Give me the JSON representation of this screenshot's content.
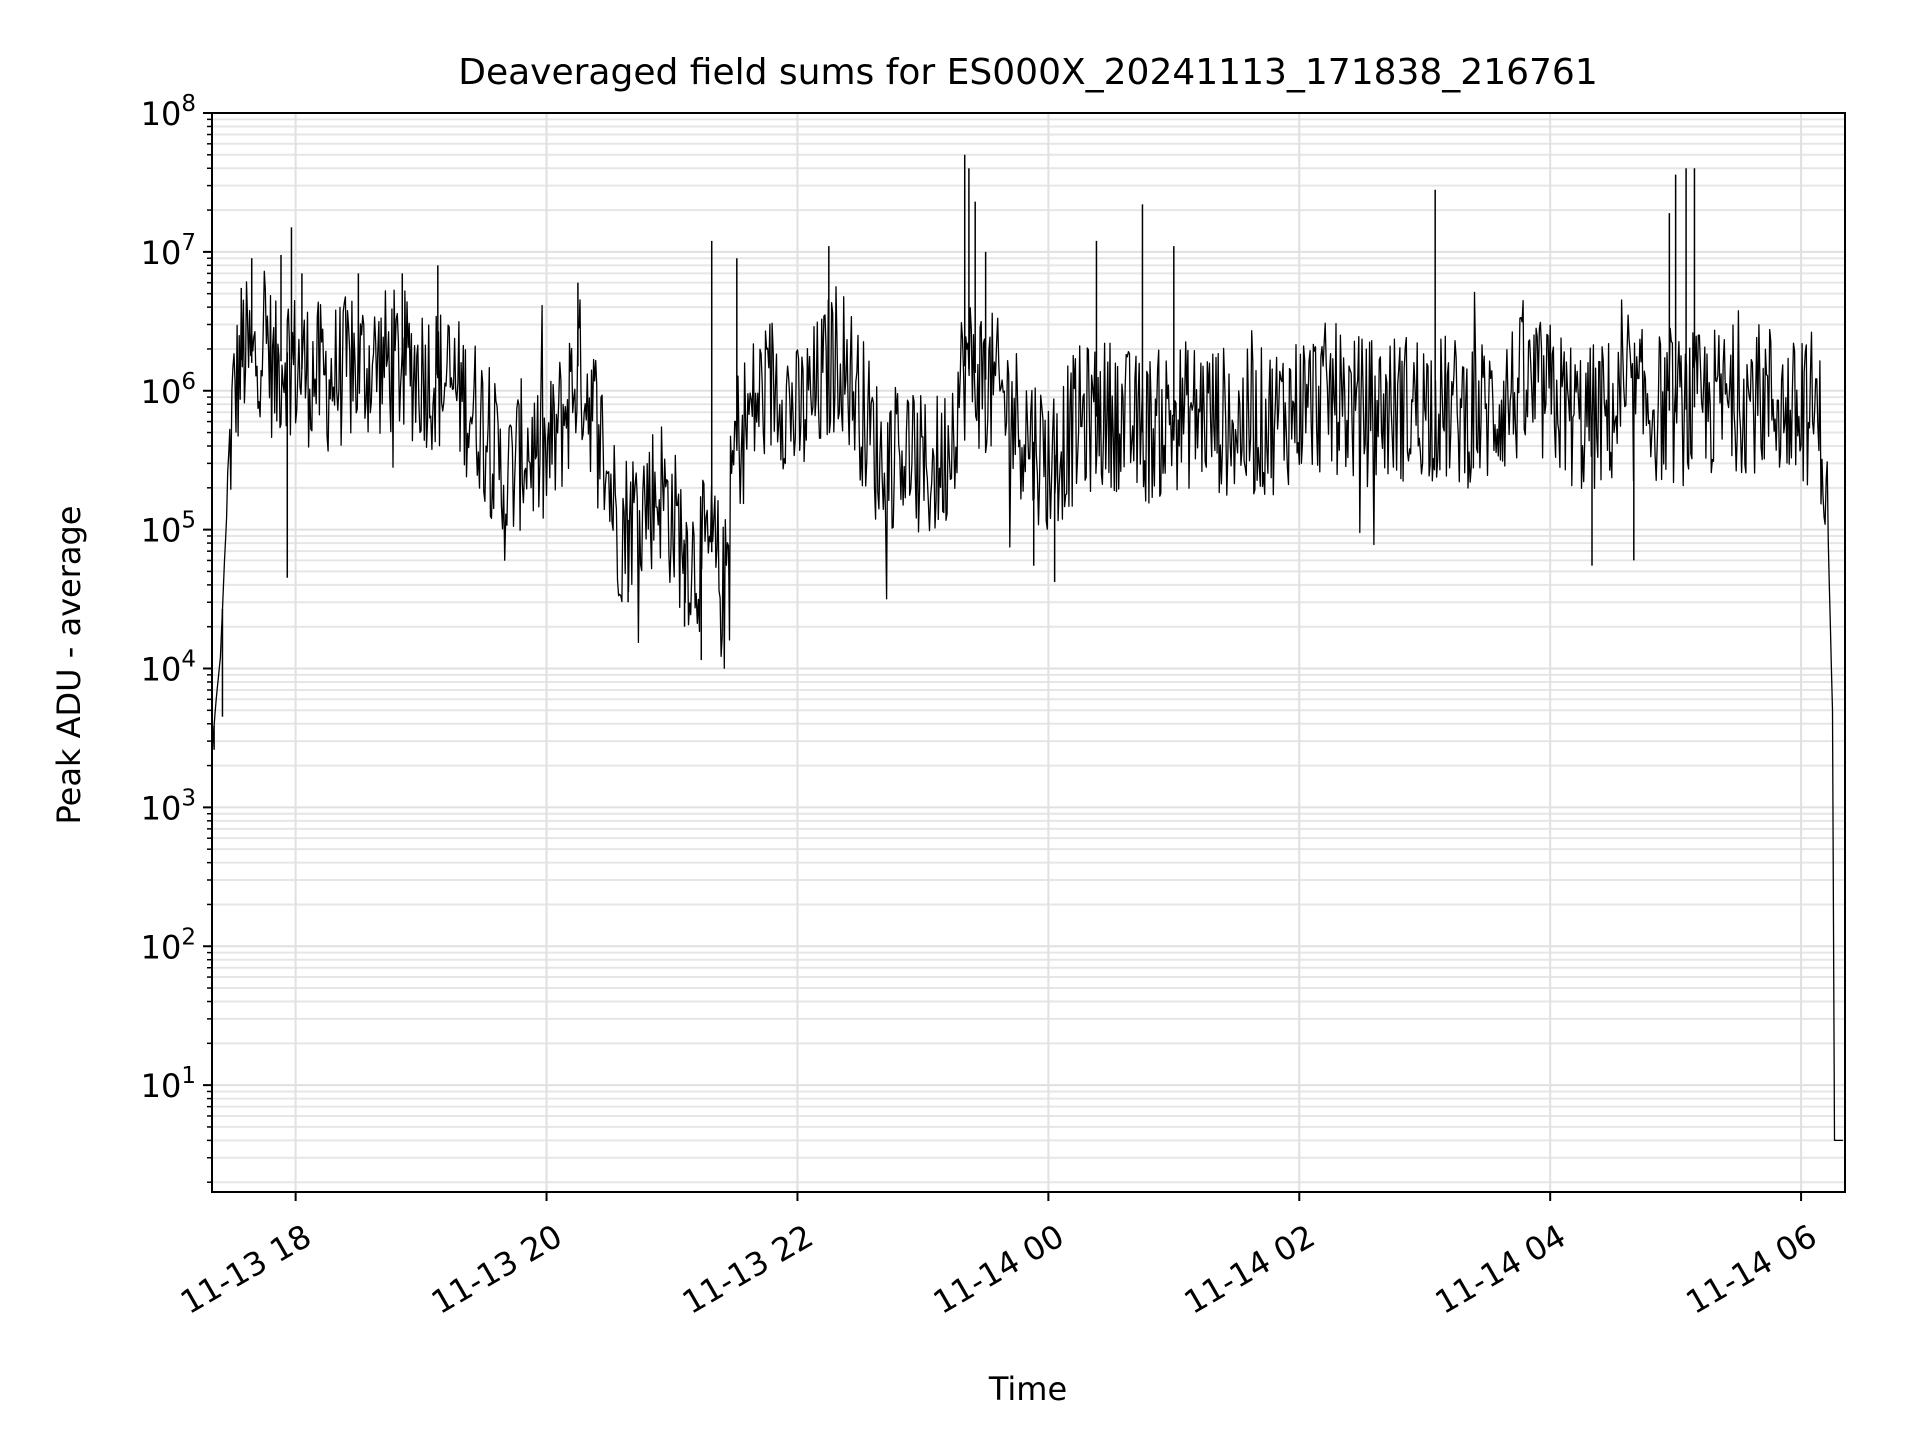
{
  "chart_data": {
    "type": "line",
    "title": "Deaveraged field sums for ES000X_20241113_171838_216761",
    "xlabel": "Time",
    "ylabel": "Peak ADU - average",
    "yscale": "log",
    "grid": {
      "major": true,
      "minor_y": true
    },
    "line_color": "#000000",
    "xlim": [
      "2024-11-13 17:20",
      "2024-11-14 06:21"
    ],
    "ylim": [
      1.7,
      100000000
    ],
    "xticks": [
      {
        "t": "2024-11-13 18:00",
        "label": "11-13 18"
      },
      {
        "t": "2024-11-13 20:00",
        "label": "11-13 20"
      },
      {
        "t": "2024-11-13 22:00",
        "label": "11-13 22"
      },
      {
        "t": "2024-11-14 00:00",
        "label": "11-14 00"
      },
      {
        "t": "2024-11-14 02:00",
        "label": "11-14 02"
      },
      {
        "t": "2024-11-14 04:00",
        "label": "11-14 04"
      },
      {
        "t": "2024-11-14 06:00",
        "label": "11-14 06"
      }
    ],
    "yticks": [
      {
        "v": 10,
        "base": "10",
        "exp": "1"
      },
      {
        "v": 100,
        "base": "10",
        "exp": "2"
      },
      {
        "v": 1000,
        "base": "10",
        "exp": "3"
      },
      {
        "v": 10000,
        "base": "10",
        "exp": "4"
      },
      {
        "v": 100000,
        "base": "10",
        "exp": "5"
      },
      {
        "v": 1000000,
        "base": "10",
        "exp": "6"
      },
      {
        "v": 10000000,
        "base": "10",
        "exp": "7"
      },
      {
        "v": 100000000,
        "base": "10",
        "exp": "8"
      }
    ],
    "series": [
      {
        "points": [
          [
            "2024-11-13 17:20",
            2500
          ],
          [
            "2024-11-13 17:22",
            6000
          ],
          [
            "2024-11-13 17:24",
            12000
          ],
          [
            "2024-11-13 17:26",
            60000
          ],
          [
            "2024-11-13 17:28",
            250000
          ],
          [
            "2024-11-13 17:30",
            800000
          ],
          [
            "2024-11-13 17:35",
            2000000
          ],
          [
            "2024-11-13 17:40",
            1500000
          ],
          [
            "2024-11-13 17:45",
            3000000
          ],
          [
            "2024-11-13 17:50",
            1200000
          ],
          [
            "2024-11-13 17:55",
            2000000
          ],
          [
            "2024-11-13 18:00",
            1500000
          ],
          [
            "2024-11-13 18:15",
            1200000
          ],
          [
            "2024-11-13 18:30",
            1500000
          ],
          [
            "2024-11-13 18:45",
            1600000
          ],
          [
            "2024-11-13 19:00",
            1400000
          ],
          [
            "2024-11-13 19:15",
            1100000
          ],
          [
            "2024-11-13 19:30",
            600000
          ],
          [
            "2024-11-13 19:40",
            200000
          ],
          [
            "2024-11-13 19:50",
            400000
          ],
          [
            "2024-11-13 20:00",
            300000
          ],
          [
            "2024-11-13 20:10",
            800000
          ],
          [
            "2024-11-13 20:15",
            1500000
          ],
          [
            "2024-11-13 20:20",
            1000000
          ],
          [
            "2024-11-13 20:25",
            500000
          ],
          [
            "2024-11-13 20:35",
            100000
          ],
          [
            "2024-11-13 20:45",
            150000
          ],
          [
            "2024-11-13 20:55",
            200000
          ],
          [
            "2024-11-13 21:00",
            120000
          ],
          [
            "2024-11-13 21:10",
            60000
          ],
          [
            "2024-11-13 21:20",
            70000
          ],
          [
            "2024-11-13 21:25",
            30000
          ],
          [
            "2024-11-13 21:30",
            400000
          ],
          [
            "2024-11-13 21:40",
            800000
          ],
          [
            "2024-11-13 21:50",
            1200000
          ],
          [
            "2024-11-13 22:00",
            600000
          ],
          [
            "2024-11-13 22:10",
            1000000
          ],
          [
            "2024-11-13 22:20",
            2000000
          ],
          [
            "2024-11-13 22:30",
            800000
          ],
          [
            "2024-11-13 22:40",
            300000
          ],
          [
            "2024-11-13 22:50",
            400000
          ],
          [
            "2024-11-13 23:00",
            250000
          ],
          [
            "2024-11-13 23:10",
            300000
          ],
          [
            "2024-11-13 23:20",
            1500000
          ],
          [
            "2024-11-13 23:30",
            1200000
          ],
          [
            "2024-11-13 23:40",
            800000
          ],
          [
            "2024-11-13 23:50",
            500000
          ],
          [
            "2024-11-14 00:00",
            300000
          ],
          [
            "2024-11-14 00:15",
            600000
          ],
          [
            "2024-11-14 00:30",
            700000
          ],
          [
            "2024-11-14 00:45",
            500000
          ],
          [
            "2024-11-14 01:00",
            650000
          ],
          [
            "2024-11-14 01:15",
            700000
          ],
          [
            "2024-11-14 01:30",
            550000
          ],
          [
            "2024-11-14 01:45",
            600000
          ],
          [
            "2024-11-14 02:00",
            800000
          ],
          [
            "2024-11-14 02:15",
            900000
          ],
          [
            "2024-11-14 02:30",
            700000
          ],
          [
            "2024-11-14 02:45",
            750000
          ],
          [
            "2024-11-14 03:00",
            800000
          ],
          [
            "2024-11-14 03:15",
            700000
          ],
          [
            "2024-11-14 03:30",
            700000
          ],
          [
            "2024-11-14 03:45",
            1000000
          ],
          [
            "2024-11-14 04:00",
            900000
          ],
          [
            "2024-11-14 04:15",
            600000
          ],
          [
            "2024-11-14 04:30",
            700000
          ],
          [
            "2024-11-14 04:45",
            800000
          ],
          [
            "2024-11-14 05:00",
            700000
          ],
          [
            "2024-11-14 05:15",
            800000
          ],
          [
            "2024-11-14 05:30",
            900000
          ],
          [
            "2024-11-14 05:45",
            900000
          ],
          [
            "2024-11-14 06:00",
            600000
          ],
          [
            "2024-11-14 06:05",
            800000
          ],
          [
            "2024-11-14 06:10",
            500000
          ],
          [
            "2024-11-14 06:13",
            80000
          ],
          [
            "2024-11-14 06:15",
            5000
          ],
          [
            "2024-11-14 06:16",
            4
          ],
          [
            "2024-11-14 06:20",
            4
          ]
        ],
        "spikes": [
          [
            "2024-11-13 17:34",
            5500000
          ],
          [
            "2024-11-13 17:39",
            9000000
          ],
          [
            "2024-11-13 17:53",
            9500000
          ],
          [
            "2024-11-13 17:58",
            15000000
          ],
          [
            "2024-11-13 18:03",
            7000000
          ],
          [
            "2024-11-13 18:30",
            7000000
          ],
          [
            "2024-11-13 18:51",
            7000000
          ],
          [
            "2024-11-13 19:08",
            8000000
          ],
          [
            "2024-11-13 20:15",
            6000000
          ],
          [
            "2024-11-13 21:19",
            12000000
          ],
          [
            "2024-11-13 21:31",
            9000000
          ],
          [
            "2024-11-13 22:15",
            11000000
          ],
          [
            "2024-11-13 23:20",
            50000000
          ],
          [
            "2024-11-13 23:22",
            40000000
          ],
          [
            "2024-11-13 23:25",
            23000000
          ],
          [
            "2024-11-13 23:30",
            10000000
          ],
          [
            "2024-11-14 00:23",
            12000000
          ],
          [
            "2024-11-14 00:45",
            22000000
          ],
          [
            "2024-11-14 01:00",
            11000000
          ],
          [
            "2024-11-14 03:05",
            28000000
          ],
          [
            "2024-11-14 04:57",
            19000000
          ],
          [
            "2024-11-14 05:00",
            36000000
          ],
          [
            "2024-11-14 05:05",
            40000000
          ],
          [
            "2024-11-14 05:09",
            40000000
          ]
        ],
        "dips": [
          [
            "2024-11-13 17:21",
            2600
          ],
          [
            "2024-11-13 17:25",
            4500
          ],
          [
            "2024-11-13 17:56",
            45000
          ],
          [
            "2024-11-13 20:39",
            30000
          ],
          [
            "2024-11-13 21:06",
            20000
          ],
          [
            "2024-11-13 21:14",
            11500
          ],
          [
            "2024-11-13 23:53",
            55000
          ],
          [
            "2024-11-14 00:03",
            42000
          ],
          [
            "2024-11-14 04:20",
            55000
          ],
          [
            "2024-11-14 04:40",
            60000
          ]
        ]
      }
    ]
  }
}
